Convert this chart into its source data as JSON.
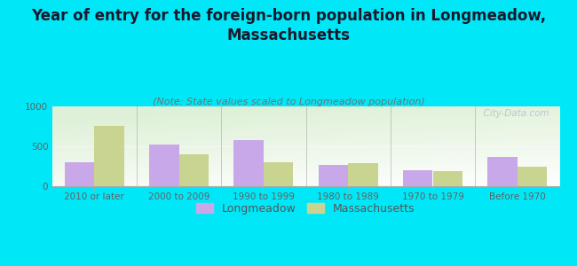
{
  "title": "Year of entry for the foreign-born population in Longmeadow,\nMassachusetts",
  "subtitle": "(Note: State values scaled to Longmeadow population)",
  "categories": [
    "2010 or later",
    "2000 to 2009",
    "1990 to 1999",
    "1980 to 1989",
    "1970 to 1979",
    "Before 1970"
  ],
  "longmeadow": [
    300,
    525,
    575,
    265,
    195,
    365
  ],
  "massachusetts": [
    760,
    400,
    300,
    285,
    190,
    240
  ],
  "longmeadow_color": "#c8a8e8",
  "massachusetts_color": "#c8d48f",
  "background_color": "#00e8f8",
  "ylim": [
    0,
    1000
  ],
  "yticks": [
    0,
    500,
    1000
  ],
  "bar_width": 0.35,
  "title_fontsize": 12,
  "subtitle_fontsize": 8,
  "tick_fontsize": 7.5,
  "legend_fontsize": 9,
  "watermark": "  City-Data.com"
}
